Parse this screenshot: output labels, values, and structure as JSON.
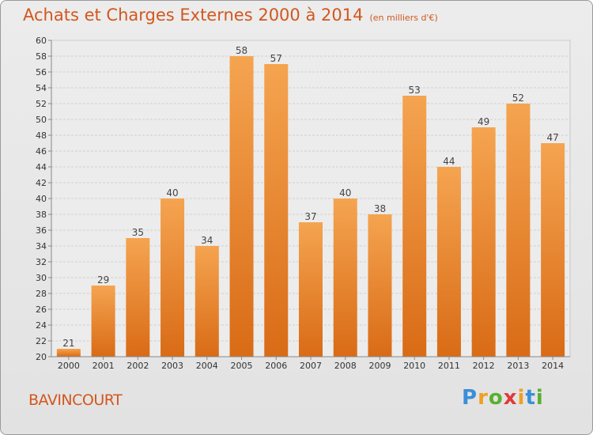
{
  "header": {
    "title": "Achats et Charges Externes 2000 à 2014",
    "unit": "(en milliers d'€)"
  },
  "footer": {
    "place": "BAVINCOURT",
    "logo_letters": [
      "P",
      "r",
      "o",
      "x",
      "i",
      "t",
      "i"
    ]
  },
  "colors": {
    "title": "#d2571e",
    "bar_light": "#f5a450",
    "bar_dark": "#d96b16",
    "logo": [
      "#3a8fd9",
      "#f0a020",
      "#58b030",
      "#e03a3a",
      "#f0a020",
      "#3a8fd9",
      "#58b030"
    ]
  },
  "chart_data": {
    "type": "bar",
    "categories": [
      "2000",
      "2001",
      "2002",
      "2003",
      "2004",
      "2005",
      "2006",
      "2007",
      "2008",
      "2009",
      "2010",
      "2011",
      "2012",
      "2013",
      "2014"
    ],
    "values": [
      21,
      29,
      35,
      40,
      34,
      58,
      57,
      37,
      40,
      38,
      53,
      44,
      49,
      52,
      47
    ],
    "ylim": [
      20,
      60
    ],
    "yticks": [
      20,
      22,
      24,
      26,
      28,
      30,
      32,
      34,
      36,
      38,
      40,
      42,
      44,
      46,
      48,
      50,
      52,
      54,
      56,
      58,
      60
    ],
    "grid": true,
    "xlabel": "",
    "ylabel": ""
  }
}
